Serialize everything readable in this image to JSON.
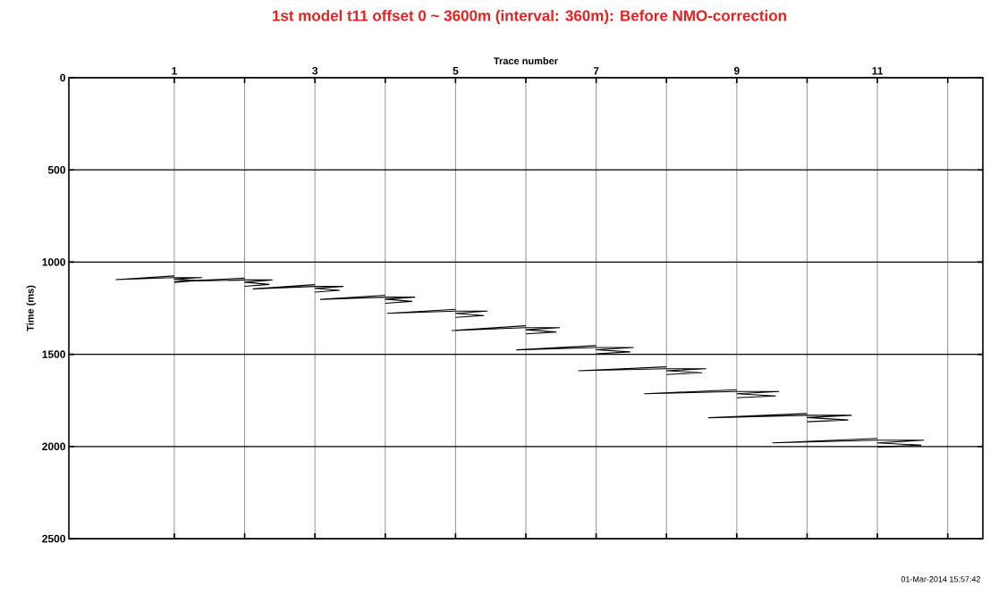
{
  "chart_data": {
    "type": "line",
    "title": "1st model t11 offset 0 ~ 3600m (interval: 360m): Before NMO-correction",
    "xlabel": "Trace number",
    "ylabel": "Time (ms)",
    "annotations": [
      "01-Mar-2014 15:57:42"
    ],
    "xlim": [
      -0.5,
      12.5
    ],
    "xticks": [
      1,
      {
        "value": 2,
        "label": null
      },
      3,
      {
        "value": 4,
        "label": null
      },
      5,
      {
        "value": 6,
        "label": null
      },
      7,
      {
        "value": 8,
        "label": null
      },
      9,
      {
        "value": 10,
        "label": null
      },
      11,
      {
        "value": 12,
        "label": null
      }
    ],
    "ylim": [
      2500,
      0
    ],
    "yticks": [
      0,
      500,
      1000,
      1500,
      2000,
      2500
    ],
    "grid": true,
    "marker": "none",
    "line_style": "solid",
    "series": [
      {
        "color": "#000000",
        "x": [
          1,
          0.17,
          1,
          1.39,
          1,
          1.3,
          1
        ],
        "values": [
          1075,
          1095,
          1084,
          1084,
          1092,
          1100,
          1110
        ]
      },
      {
        "color": "#000000",
        "x": [
          2,
          1.01,
          2,
          2.39,
          2,
          2.35,
          2
        ],
        "values": [
          1087,
          1105,
          1097,
          1097,
          1109,
          1121,
          1131
        ]
      },
      {
        "color": "#000000",
        "x": [
          3,
          2.12,
          3,
          3.4,
          3,
          3.35,
          3
        ],
        "values": [
          1122,
          1145,
          1132,
          1132,
          1142,
          1153,
          1163
        ]
      },
      {
        "color": "#000000",
        "x": [
          4,
          3.08,
          4,
          4.42,
          4,
          4.38,
          4
        ],
        "values": [
          1180,
          1202,
          1190,
          1190,
          1201,
          1213,
          1223
        ]
      },
      {
        "color": "#000000",
        "x": [
          5,
          4.03,
          5,
          5.45,
          5,
          5.4,
          5
        ],
        "values": [
          1256,
          1278,
          1266,
          1266,
          1278,
          1290,
          1300
        ]
      },
      {
        "color": "#000000",
        "x": [
          6,
          4.95,
          6,
          6.48,
          6,
          6.43,
          6
        ],
        "values": [
          1345,
          1371,
          1355,
          1355,
          1367,
          1379,
          1389
        ]
      },
      {
        "color": "#000000",
        "x": [
          7,
          5.87,
          7,
          7.53,
          7,
          7.48,
          7
        ],
        "values": [
          1453,
          1476,
          1463,
          1463,
          1475,
          1487,
          1497
        ]
      },
      {
        "color": "#000000",
        "x": [
          8,
          6.75,
          8,
          8.56,
          8,
          8.5,
          8
        ],
        "values": [
          1568,
          1589,
          1578,
          1578,
          1589,
          1600,
          1610
        ]
      },
      {
        "color": "#000000",
        "x": [
          9,
          7.69,
          9,
          9.6,
          9,
          9.55,
          9
        ],
        "values": [
          1692,
          1714,
          1702,
          1702,
          1714,
          1726,
          1736
        ]
      },
      {
        "color": "#000000",
        "x": [
          10,
          8.6,
          10,
          10.63,
          10,
          10.58,
          10
        ],
        "values": [
          1821,
          1844,
          1831,
          1831,
          1843,
          1856,
          1866
        ]
      },
      {
        "color": "#000000",
        "x": [
          11,
          9.51,
          11,
          11.66,
          11,
          11.62,
          11
        ],
        "values": [
          1956,
          1980,
          1966,
          1966,
          1980,
          1993,
          2003
        ]
      }
    ]
  }
}
